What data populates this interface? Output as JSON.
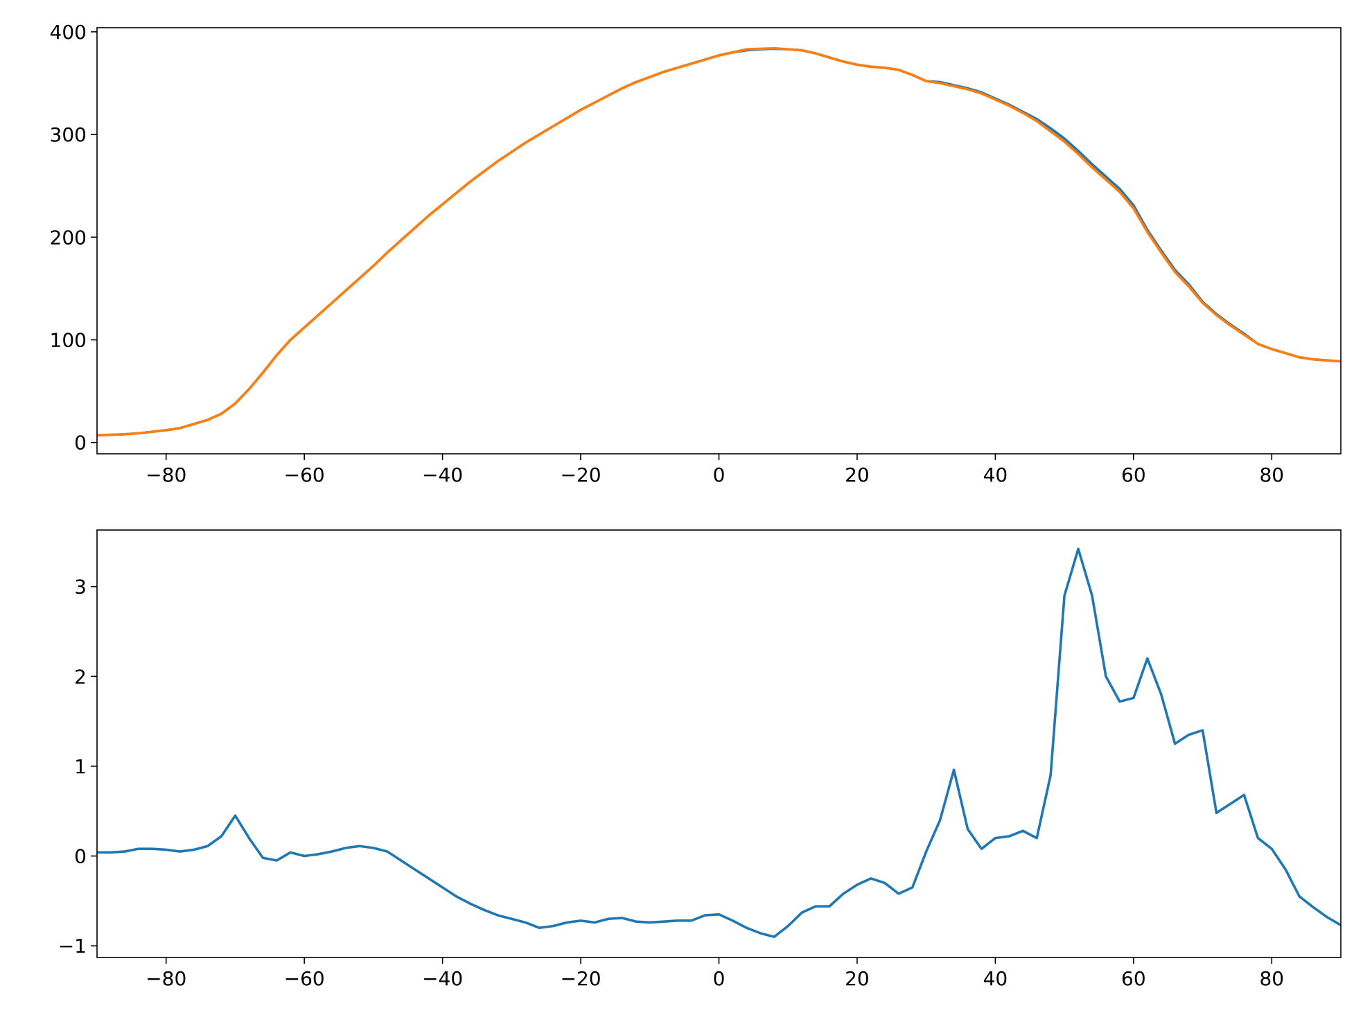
{
  "chart_data": [
    {
      "type": "line",
      "x": [
        -90,
        -88,
        -86,
        -84,
        -82,
        -80,
        -78,
        -76,
        -74,
        -72,
        -70,
        -68,
        -66,
        -64,
        -62,
        -60,
        -58,
        -56,
        -54,
        -52,
        -50,
        -48,
        -46,
        -44,
        -42,
        -40,
        -38,
        -36,
        -34,
        -32,
        -30,
        -28,
        -26,
        -24,
        -22,
        -20,
        -18,
        -16,
        -14,
        -12,
        -10,
        -8,
        -6,
        -4,
        -2,
        0,
        2,
        4,
        6,
        8,
        10,
        12,
        14,
        16,
        18,
        20,
        22,
        24,
        26,
        28,
        30,
        32,
        34,
        36,
        38,
        40,
        42,
        44,
        46,
        48,
        50,
        52,
        54,
        56,
        58,
        60,
        62,
        64,
        66,
        68,
        70,
        72,
        74,
        76,
        78,
        80,
        82,
        84,
        86,
        88,
        90
      ],
      "series": [
        {
          "color": "#1f77b4",
          "values": [
            7,
            7.5,
            8,
            9,
            10.5,
            12,
            14,
            18,
            22,
            28,
            38,
            52,
            68,
            85,
            100,
            112,
            124,
            136,
            148,
            160,
            172,
            185,
            197,
            209,
            221,
            232,
            243,
            254,
            264,
            274,
            283,
            292,
            300,
            308,
            316,
            324,
            331,
            338,
            345,
            351,
            356,
            361,
            365,
            369,
            373,
            377,
            380,
            382,
            383,
            383.5,
            383,
            382,
            379,
            375,
            371,
            368,
            366,
            365,
            363,
            358,
            352,
            351,
            348,
            345,
            341,
            335,
            329,
            322,
            315,
            306,
            296,
            284,
            271,
            259,
            247,
            231,
            207,
            187,
            168,
            154,
            137,
            125,
            115,
            106,
            96,
            91,
            87,
            83,
            81,
            80,
            79
          ]
        },
        {
          "color": "#ff7f0e",
          "values": [
            7,
            7.5,
            8,
            9,
            10.5,
            12,
            14,
            18,
            22,
            28,
            38,
            52,
            68,
            85,
            100,
            112,
            124,
            136,
            148,
            160,
            172,
            185,
            197,
            209,
            221,
            232,
            243,
            254,
            264,
            274,
            283,
            292,
            300,
            308,
            316,
            324,
            331,
            338,
            345,
            351,
            356,
            361,
            365,
            369,
            373,
            377,
            380,
            383,
            383.5,
            384,
            383,
            382,
            379,
            375,
            371,
            368,
            366,
            365,
            363,
            358,
            352,
            350,
            347,
            344,
            340,
            334,
            328,
            321,
            313,
            303,
            293,
            281,
            268,
            256,
            244,
            228,
            205,
            185,
            166,
            152,
            136,
            124,
            114,
            105,
            96,
            91,
            87,
            83,
            81,
            80,
            79
          ]
        }
      ],
      "xlim": [
        -90,
        90
      ],
      "ylim": [
        -11,
        404
      ],
      "xticks": [
        {
          "value": -80,
          "label": "−80"
        },
        {
          "value": -60,
          "label": "−60"
        },
        {
          "value": -40,
          "label": "−40"
        },
        {
          "value": -20,
          "label": "−20"
        },
        0,
        20,
        40,
        60,
        80
      ],
      "yticks": [
        0,
        100,
        200,
        300,
        400
      ]
    },
    {
      "type": "line",
      "x": [
        -90,
        -88,
        -86,
        -84,
        -82,
        -80,
        -78,
        -76,
        -74,
        -72,
        -70,
        -68,
        -66,
        -64,
        -62,
        -60,
        -58,
        -56,
        -54,
        -52,
        -50,
        -48,
        -46,
        -44,
        -42,
        -40,
        -38,
        -36,
        -34,
        -32,
        -30,
        -28,
        -26,
        -24,
        -22,
        -20,
        -18,
        -16,
        -14,
        -12,
        -10,
        -8,
        -6,
        -4,
        -2,
        0,
        2,
        4,
        6,
        8,
        10,
        12,
        14,
        16,
        18,
        20,
        22,
        24,
        26,
        28,
        30,
        32,
        34,
        36,
        38,
        40,
        42,
        44,
        46,
        48,
        50,
        52,
        54,
        56,
        58,
        60,
        62,
        64,
        66,
        68,
        70,
        72,
        74,
        76,
        78,
        80,
        82,
        84,
        86,
        88,
        90
      ],
      "series": [
        {
          "color": "#1f77b4",
          "values": [
            0.04,
            0.04,
            0.05,
            0.08,
            0.08,
            0.07,
            0.05,
            0.07,
            0.11,
            0.22,
            0.45,
            0.2,
            -0.02,
            -0.05,
            0.04,
            0.0,
            0.02,
            0.05,
            0.09,
            0.11,
            0.09,
            0.05,
            -0.05,
            -0.15,
            -0.25,
            -0.35,
            -0.45,
            -0.53,
            -0.6,
            -0.66,
            -0.7,
            -0.74,
            -0.8,
            -0.78,
            -0.74,
            -0.72,
            -0.74,
            -0.7,
            -0.69,
            -0.73,
            -0.74,
            -0.73,
            -0.72,
            -0.72,
            -0.66,
            -0.65,
            -0.72,
            -0.8,
            -0.86,
            -0.9,
            -0.78,
            -0.63,
            -0.56,
            -0.56,
            -0.42,
            -0.32,
            -0.25,
            -0.3,
            -0.42,
            -0.35,
            0.05,
            0.4,
            0.96,
            0.3,
            0.08,
            0.2,
            0.22,
            0.28,
            0.2,
            0.9,
            2.9,
            3.42,
            2.9,
            2.0,
            1.72,
            1.76,
            2.2,
            1.8,
            1.25,
            1.35,
            1.4,
            0.48,
            0.58,
            0.68,
            0.2,
            0.08,
            -0.15,
            -0.45,
            -0.57,
            -0.68,
            -0.77
          ]
        }
      ],
      "xlim": [
        -90,
        90
      ],
      "ylim": [
        -1.13,
        3.63
      ],
      "xticks": [
        {
          "value": -80,
          "label": "−80"
        },
        {
          "value": -60,
          "label": "−60"
        },
        {
          "value": -40,
          "label": "−40"
        },
        {
          "value": -20,
          "label": "−20"
        },
        0,
        20,
        40,
        60,
        80
      ],
      "yticks": [
        {
          "value": -1,
          "label": "−1"
        },
        0,
        1,
        2,
        3
      ]
    }
  ]
}
